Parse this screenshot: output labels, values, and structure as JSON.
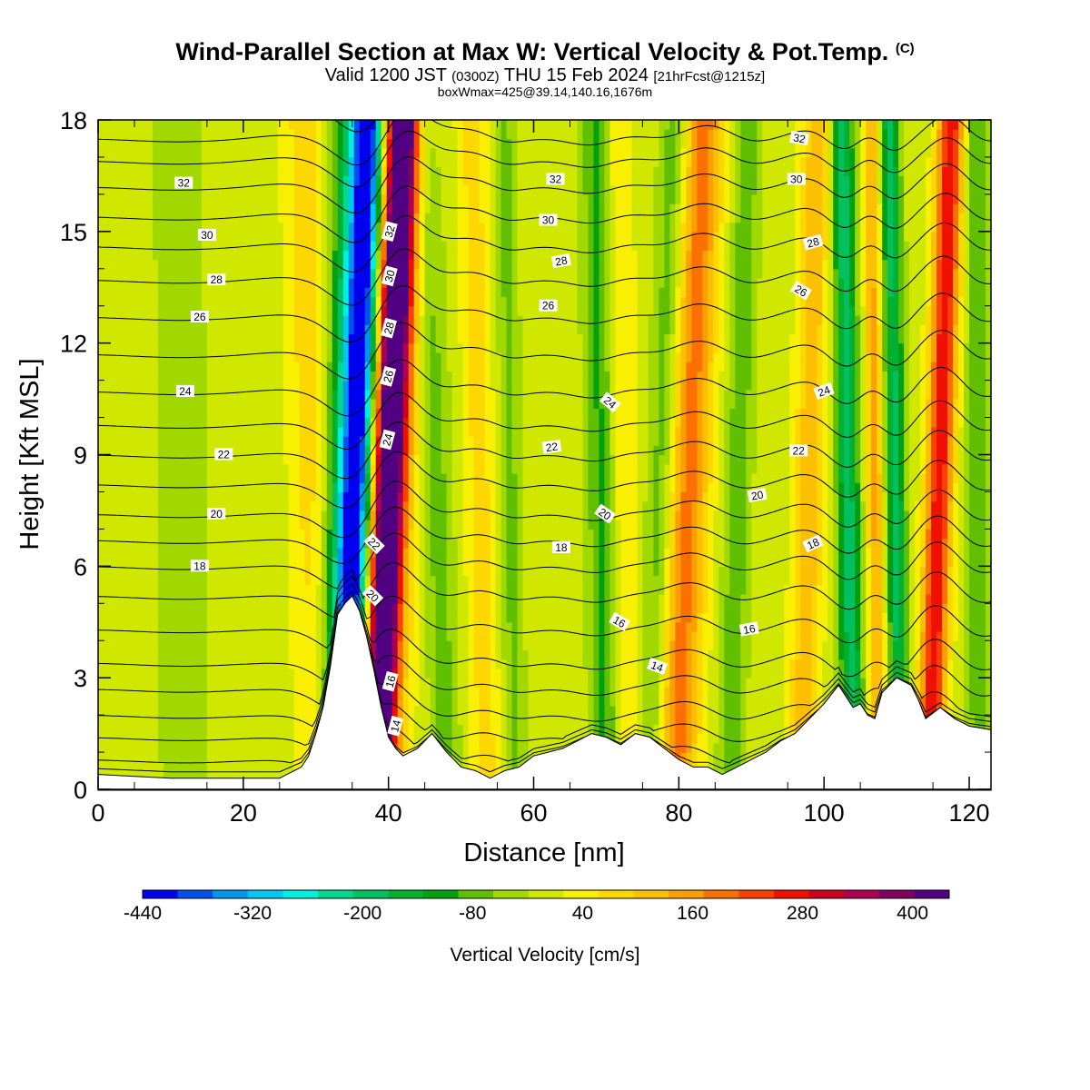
{
  "header": {
    "title": "Wind-Parallel Section at Max W: Vertical Velocity & Pot.Temp.",
    "copyright": "(C)",
    "valid_prefix": "Valid 1200 JST",
    "valid_utc": "(0300Z)",
    "valid_date": "THU 15 Feb 2024",
    "forecast": "[21hrFcst@1215z]",
    "box_info": "boxWmax=425@39.14,140.16,1676m"
  },
  "chart_data": {
    "type": "heatmap",
    "xlabel": "Distance [nm]",
    "ylabel": "Height [Kft MSL]",
    "xlim": [
      0,
      123
    ],
    "ylim": [
      0,
      18
    ],
    "x_ticks": [
      0,
      20,
      40,
      60,
      80,
      100,
      120
    ],
    "y_ticks": [
      0,
      3,
      6,
      9,
      12,
      15,
      18
    ],
    "colorbar": {
      "label": "Vertical Velocity [cm/s]",
      "tick_values": [
        -440,
        -320,
        -200,
        -80,
        40,
        160,
        280,
        400
      ],
      "levels": [
        -440,
        -400,
        -360,
        -320,
        -280,
        -240,
        -200,
        -160,
        -120,
        -80,
        -40,
        0,
        40,
        80,
        120,
        160,
        200,
        240,
        280,
        320,
        360,
        400,
        440
      ],
      "colors": [
        "#0000f0",
        "#0050f0",
        "#0096f0",
        "#00c8f0",
        "#00f0e0",
        "#00d890",
        "#00c060",
        "#00b030",
        "#00a010",
        "#60c000",
        "#a0d800",
        "#d0e800",
        "#f8f000",
        "#fcd800",
        "#fcc000",
        "#fca000",
        "#fc7000",
        "#fc4000",
        "#f01000",
        "#d00020",
        "#b00050",
        "#800060",
        "#500080"
      ]
    },
    "terrain_kft": [
      [
        0,
        0.4
      ],
      [
        5,
        0.35
      ],
      [
        10,
        0.3
      ],
      [
        15,
        0.3
      ],
      [
        20,
        0.3
      ],
      [
        25,
        0.3
      ],
      [
        28,
        0.6
      ],
      [
        29,
        0.9
      ],
      [
        30,
        1.5
      ],
      [
        31,
        2.2
      ],
      [
        32,
        3.3
      ],
      [
        33,
        4.7
      ],
      [
        34,
        5.0
      ],
      [
        35,
        5.2
      ],
      [
        36,
        4.8
      ],
      [
        37,
        4.1
      ],
      [
        38,
        3.2
      ],
      [
        39,
        2.2
      ],
      [
        40,
        1.4
      ],
      [
        41,
        1.1
      ],
      [
        42,
        0.9
      ],
      [
        44,
        1.1
      ],
      [
        46,
        1.5
      ],
      [
        48,
        1.0
      ],
      [
        50,
        0.6
      ],
      [
        52,
        0.5
      ],
      [
        54,
        0.3
      ],
      [
        56,
        0.5
      ],
      [
        58,
        0.6
      ],
      [
        60,
        0.9
      ],
      [
        62,
        1.0
      ],
      [
        64,
        1.1
      ],
      [
        66,
        1.3
      ],
      [
        68,
        1.5
      ],
      [
        70,
        1.4
      ],
      [
        72,
        1.2
      ],
      [
        74,
        1.5
      ],
      [
        76,
        1.4
      ],
      [
        78,
        1.1
      ],
      [
        80,
        0.8
      ],
      [
        82,
        0.6
      ],
      [
        84,
        0.6
      ],
      [
        86,
        0.4
      ],
      [
        88,
        0.6
      ],
      [
        90,
        0.8
      ],
      [
        92,
        1.0
      ],
      [
        94,
        1.3
      ],
      [
        96,
        1.5
      ],
      [
        98,
        1.9
      ],
      [
        100,
        2.3
      ],
      [
        102,
        2.8
      ],
      [
        103,
        2.5
      ],
      [
        104,
        2.2
      ],
      [
        105,
        2.3
      ],
      [
        106,
        2.0
      ],
      [
        107,
        1.9
      ],
      [
        108,
        2.6
      ],
      [
        110,
        3.0
      ],
      [
        112,
        2.8
      ],
      [
        113,
        2.4
      ],
      [
        114,
        1.9
      ],
      [
        116,
        2.2
      ],
      [
        118,
        1.9
      ],
      [
        120,
        1.7
      ],
      [
        123,
        1.6
      ]
    ],
    "w_bands": [
      {
        "x0": 34.0,
        "x1": 37.5,
        "w": -360,
        "width": 2.2
      },
      {
        "x0": 33.5,
        "x1": 36.0,
        "w": -220,
        "width": 3.5
      },
      {
        "x0": 38.5,
        "x1": 42.0,
        "w": 400,
        "width": 2.0
      },
      {
        "x0": 38.0,
        "x1": 41.5,
        "w": 240,
        "width": 3.5
      },
      {
        "x0": 30.5,
        "x1": 28.5,
        "w": 90,
        "width": 3.0
      },
      {
        "x0": 48.0,
        "x1": 45.0,
        "w": -80,
        "width": 2.0
      },
      {
        "x0": 53.5,
        "x1": 51.5,
        "w": 80,
        "width": 2.0
      },
      {
        "x0": 57.5,
        "x1": 56.0,
        "w": -70,
        "width": 1.5
      },
      {
        "x0": 70.0,
        "x1": 68.5,
        "w": -110,
        "width": 2.0
      },
      {
        "x0": 73.0,
        "x1": 71.5,
        "w": 60,
        "width": 2.0
      },
      {
        "x0": 76.0,
        "x1": 79.5,
        "w": -90,
        "width": 2.0
      },
      {
        "x0": 79.5,
        "x1": 83.5,
        "w": 200,
        "width": 2.8
      },
      {
        "x0": 87.0,
        "x1": 89.5,
        "w": -90,
        "width": 1.8
      },
      {
        "x0": 97.0,
        "x1": 99.0,
        "w": 130,
        "width": 2.0
      },
      {
        "x0": 104.0,
        "x1": 102.5,
        "w": -200,
        "width": 1.6
      },
      {
        "x0": 107.5,
        "x1": 106.5,
        "w": 150,
        "width": 1.2
      },
      {
        "x0": 110.5,
        "x1": 109.0,
        "w": -190,
        "width": 1.4
      },
      {
        "x0": 114.5,
        "x1": 117.5,
        "w": 300,
        "width": 1.8
      },
      {
        "x0": 121.5,
        "x1": 121.0,
        "w": -100,
        "width": 1.5
      },
      {
        "x0": 12.0,
        "x1": 11.0,
        "w": -40,
        "width": 4.0
      }
    ],
    "theta_contours": {
      "levels_c": [
        10,
        11,
        12,
        13,
        14,
        15,
        16,
        17,
        18,
        19,
        20,
        21,
        22,
        23,
        24,
        25,
        26,
        27,
        28,
        29,
        30,
        31,
        32,
        33
      ],
      "base_height_kft": [
        0.3,
        0.8,
        1.4,
        2.0,
        2.7,
        3.4,
        4.3,
        5.2,
        6.0,
        6.7,
        7.4,
        8.2,
        9.0,
        9.8,
        10.7,
        11.7,
        12.7,
        13.7,
        14.6,
        15.4,
        16.2,
        16.9,
        17.5,
        18.4
      ],
      "labels": [
        {
          "text": "32",
          "x": 11.8,
          "y": 16.3,
          "angle": 0
        },
        {
          "text": "30",
          "x": 15.0,
          "y": 14.9,
          "angle": 0
        },
        {
          "text": "28",
          "x": 16.3,
          "y": 13.7,
          "angle": 0
        },
        {
          "text": "26",
          "x": 14.0,
          "y": 12.7,
          "angle": 0
        },
        {
          "text": "24",
          "x": 12.0,
          "y": 10.7,
          "angle": 0
        },
        {
          "text": "22",
          "x": 17.3,
          "y": 9.0,
          "angle": 0
        },
        {
          "text": "20",
          "x": 16.3,
          "y": 7.4,
          "angle": 0
        },
        {
          "text": "18",
          "x": 14.0,
          "y": 6.0,
          "angle": 0
        },
        {
          "text": "32",
          "x": 40.2,
          "y": 15.0,
          "angle": -75
        },
        {
          "text": "30",
          "x": 40.2,
          "y": 13.8,
          "angle": -75
        },
        {
          "text": "28",
          "x": 40.1,
          "y": 12.4,
          "angle": -75
        },
        {
          "text": "26",
          "x": 40.0,
          "y": 11.1,
          "angle": -75
        },
        {
          "text": "24",
          "x": 39.9,
          "y": 9.4,
          "angle": -75
        },
        {
          "text": "22",
          "x": 38.0,
          "y": 6.6,
          "angle": 45
        },
        {
          "text": "20",
          "x": 37.8,
          "y": 5.2,
          "angle": 45
        },
        {
          "text": "16",
          "x": 40.3,
          "y": 2.9,
          "angle": -75
        },
        {
          "text": "14",
          "x": 41.0,
          "y": 1.7,
          "angle": -75
        },
        {
          "text": "32",
          "x": 63.0,
          "y": 16.4,
          "angle": 0
        },
        {
          "text": "30",
          "x": 62.0,
          "y": 15.3,
          "angle": 0
        },
        {
          "text": "28",
          "x": 63.8,
          "y": 14.2,
          "angle": -10
        },
        {
          "text": "26",
          "x": 62.0,
          "y": 13.0,
          "angle": 0
        },
        {
          "text": "24",
          "x": 70.5,
          "y": 10.4,
          "angle": 40
        },
        {
          "text": "22",
          "x": 62.5,
          "y": 9.2,
          "angle": -8
        },
        {
          "text": "20",
          "x": 69.8,
          "y": 7.4,
          "angle": 35
        },
        {
          "text": "18",
          "x": 63.8,
          "y": 6.5,
          "angle": 0
        },
        {
          "text": "16",
          "x": 71.8,
          "y": 4.5,
          "angle": 30
        },
        {
          "text": "14",
          "x": 77.0,
          "y": 3.3,
          "angle": 20
        },
        {
          "text": "32",
          "x": 96.6,
          "y": 17.5,
          "angle": 10
        },
        {
          "text": "30",
          "x": 96.2,
          "y": 16.4,
          "angle": 0
        },
        {
          "text": "28",
          "x": 98.5,
          "y": 14.7,
          "angle": -15
        },
        {
          "text": "26",
          "x": 96.8,
          "y": 13.4,
          "angle": 30
        },
        {
          "text": "24",
          "x": 100.0,
          "y": 10.7,
          "angle": -20
        },
        {
          "text": "22",
          "x": 96.5,
          "y": 9.1,
          "angle": 0
        },
        {
          "text": "20",
          "x": 90.8,
          "y": 7.9,
          "angle": -10
        },
        {
          "text": "18",
          "x": 98.5,
          "y": 6.6,
          "angle": -25
        },
        {
          "text": "16",
          "x": 89.7,
          "y": 4.3,
          "angle": -10
        }
      ]
    }
  }
}
